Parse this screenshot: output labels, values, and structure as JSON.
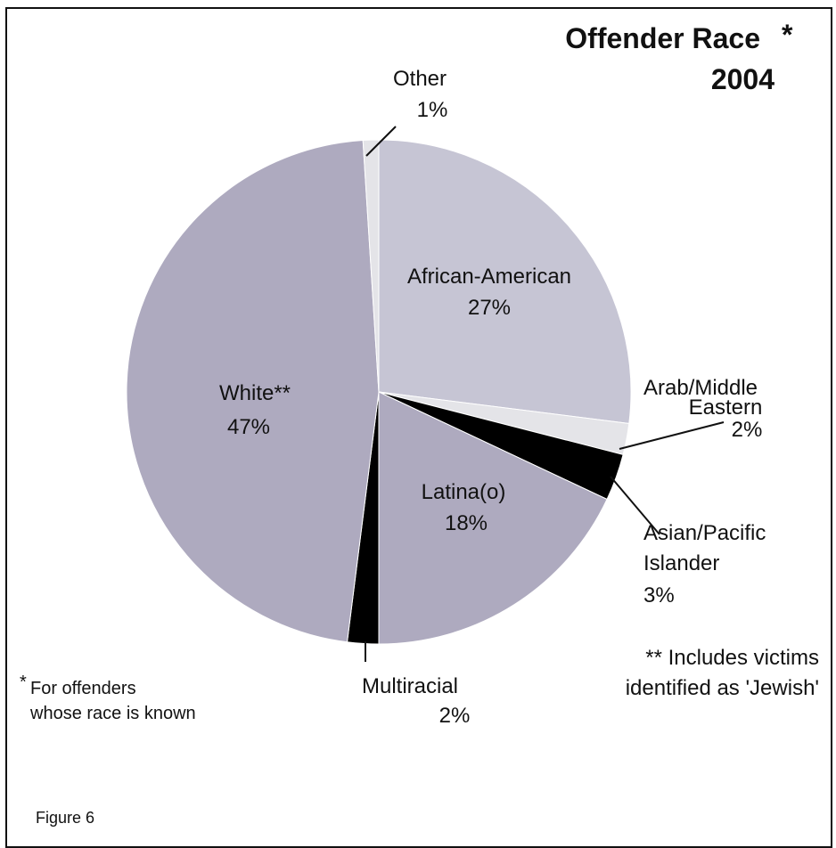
{
  "chart_data": {
    "type": "pie",
    "title": "Offender Race",
    "title_marker": "*",
    "subtitle": "2004",
    "slices": [
      {
        "name": "African-American",
        "value": 27,
        "pct_label": "27%",
        "color": "#c6c5d4"
      },
      {
        "name": "Arab/Middle Eastern",
        "value": 2,
        "pct_label": "2%",
        "color": "#e4e4e8"
      },
      {
        "name": "Asian/Pacific Islander",
        "value": 3,
        "pct_label": "3%",
        "color": "#000000"
      },
      {
        "name": "Latina(o)",
        "value": 18,
        "pct_label": "18%",
        "color": "#aeaabf"
      },
      {
        "name": "Multiracial",
        "value": 2,
        "pct_label": "2%",
        "color": "#000000"
      },
      {
        "name": "White**",
        "value": 47,
        "pct_label": "47%",
        "color": "#aeaabf"
      },
      {
        "name": "Other",
        "value": 1,
        "pct_label": "1%",
        "color": "#e4e4e8"
      }
    ],
    "labels": {
      "african_american": {
        "line1": "African-American",
        "line2": "27%"
      },
      "arab": {
        "line1": "Arab/Middle",
        "line2": "Eastern",
        "line3": "2%"
      },
      "asian": {
        "line1": "Asian/Pacific",
        "line2": "Islander",
        "line3": "3%"
      },
      "latina": {
        "line1": "Latina(o)",
        "line2": "18%"
      },
      "multiracial": {
        "line1": "Multiracial",
        "line2": "2%"
      },
      "white": {
        "line1": "White**",
        "line2": "47%"
      },
      "other": {
        "line1": "Other",
        "line2": "1%"
      }
    }
  },
  "notes": {
    "footnote_star": "*",
    "footnote_line1": "For offenders",
    "footnote_line2": "whose race is known",
    "double_star_line1": "** Includes victims",
    "double_star_line2": "identified as 'Jewish'",
    "figure_label": "Figure 6"
  }
}
